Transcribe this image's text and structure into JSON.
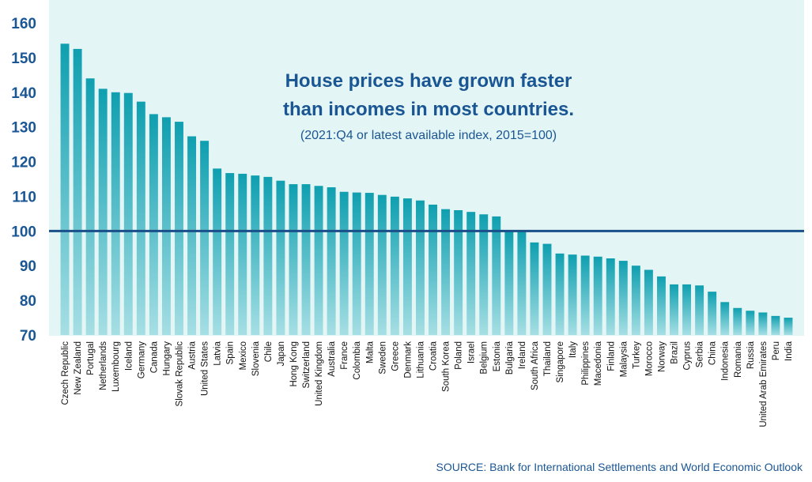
{
  "title_lines": [
    "House prices have grown faster",
    "than incomes in most countries."
  ],
  "subtitle": "(2021:Q4 or latest available index, 2015=100)",
  "source": "SOURCE: Bank for International Settlements and World Economic Outlook",
  "colors": {
    "bar_top": "#0f9fb0",
    "bar_bottom": "#a6dfe4",
    "plot_background": "#e3f5f4",
    "reference_line": "#1a4f8a",
    "text": "#1a5694"
  },
  "chart_data": {
    "type": "bar",
    "title": "House prices have grown faster than incomes in most countries.",
    "subtitle": "(2021:Q4 or latest available index, 2015=100)",
    "xlabel": "",
    "ylabel": "",
    "ylim": [
      70,
      160
    ],
    "yticks": [
      70,
      80,
      90,
      100,
      110,
      120,
      130,
      140,
      150,
      160
    ],
    "reference_line": 100,
    "grid": false,
    "categories": [
      "Czech Republic",
      "New Zealand",
      "Portugal",
      "Netherlands",
      "Luxembourg",
      "Iceland",
      "Germany",
      "Canada",
      "Hungary",
      "Slovak Republic",
      "Austria",
      "United States",
      "Latvia",
      "Spain",
      "Mexico",
      "Slovenia",
      "Chile",
      "Japan",
      "Hong Kong",
      "Switzerland",
      "United Kingdom",
      "Australia",
      "France",
      "Colombia",
      "Malta",
      "Sweden",
      "Greece",
      "Denmark",
      "Lithuania",
      "Croatia",
      "South Korea",
      "Poland",
      "Israel",
      "Belgium",
      "Estonia",
      "Bulgaria",
      "Ireland",
      "South Africa",
      "Thailand",
      "Singapore",
      "Italy",
      "Philippines",
      "Macedonia",
      "Finland",
      "Malaysia",
      "Turkey",
      "Morocco",
      "Norway",
      "Brazil",
      "Cyprus",
      "Serbia",
      "China",
      "Indonesia",
      "Romania",
      "Russia",
      "United Arab Emirates",
      "Peru",
      "India"
    ],
    "values": [
      154,
      152.5,
      144,
      141,
      140,
      139.8,
      137.3,
      133.7,
      132.8,
      131.5,
      127.3,
      126,
      118,
      116.7,
      116.5,
      116,
      115.6,
      114.5,
      113.5,
      113.5,
      113,
      112.6,
      111.3,
      111.1,
      111,
      110.4,
      109.9,
      109.4,
      108.8,
      107.6,
      106.3,
      106,
      105.5,
      104.8,
      104.2,
      99.8,
      99.8,
      96.7,
      96.3,
      93.5,
      93.2,
      92.9,
      92.6,
      92.1,
      91.4,
      90,
      88.8,
      86.9,
      84.6,
      84.6,
      84.3,
      82.5,
      79.5,
      77.8,
      77,
      76.5,
      75.5,
      75
    ]
  }
}
